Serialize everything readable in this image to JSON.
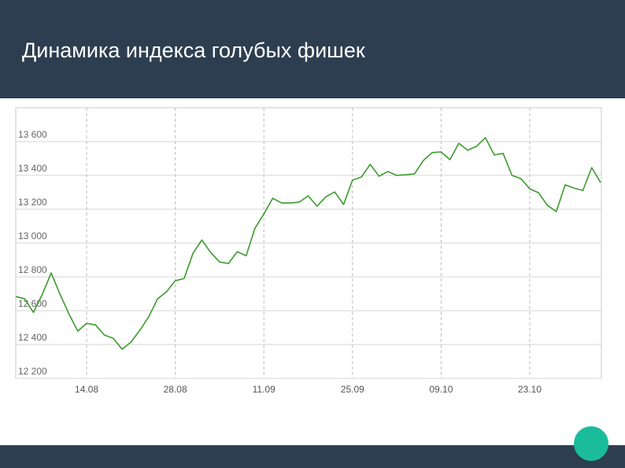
{
  "chart_data": {
    "type": "line",
    "title": "Динамика индекса голубых фишек",
    "categories": [
      null,
      null,
      null,
      null,
      null,
      null,
      null,
      null,
      "14.08",
      null,
      null,
      null,
      null,
      null,
      null,
      null,
      null,
      null,
      "28.08",
      null,
      null,
      null,
      null,
      null,
      null,
      null,
      null,
      null,
      "11.09",
      null,
      null,
      null,
      null,
      null,
      null,
      null,
      null,
      null,
      "25.09",
      null,
      null,
      null,
      null,
      null,
      null,
      null,
      null,
      null,
      "09.10",
      null,
      null,
      null,
      null,
      null,
      null,
      null,
      null,
      null,
      "23.10",
      null,
      null,
      null,
      null,
      null,
      null,
      null,
      null
    ],
    "values": [
      12684,
      12670,
      12590,
      12697,
      12823,
      12697,
      12581,
      12479,
      12525,
      12516,
      12456,
      12437,
      12372,
      12414,
      12484,
      12563,
      12670,
      12711,
      12777,
      12790,
      12939,
      13018,
      12944,
      12888,
      12879,
      12949,
      12925,
      13088,
      13172,
      13265,
      13237,
      13237,
      13242,
      13279,
      13218,
      13274,
      13302,
      13228,
      13372,
      13390,
      13465,
      13395,
      13423,
      13400,
      13404,
      13409,
      13488,
      13535,
      13539,
      13493,
      13590,
      13549,
      13572,
      13623,
      13521,
      13530,
      13400,
      13381,
      13321,
      13297,
      13223,
      13186,
      13344,
      13325,
      13311,
      13446,
      13358
    ],
    "color": "#3c9b2c",
    "ylim": [
      12200,
      13800
    ],
    "yticks": [
      {
        "value": 12200,
        "label": "12 200"
      },
      {
        "value": 12400,
        "label": "12 400"
      },
      {
        "value": 12600,
        "label": "12 600"
      },
      {
        "value": 12800,
        "label": "12 800"
      },
      {
        "value": 13000,
        "label": "13 000"
      },
      {
        "value": 13200,
        "label": "13 200"
      },
      {
        "value": 13400,
        "label": "13 400"
      },
      {
        "value": 13600,
        "label": "13 600"
      }
    ],
    "grid": true
  }
}
